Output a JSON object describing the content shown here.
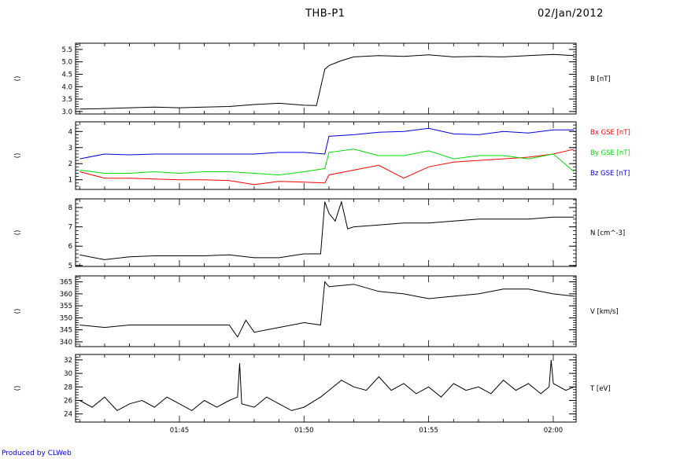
{
  "header": {
    "title": "THB-P1",
    "date": "02/Jan/2012"
  },
  "footer": {
    "credit": "Produced by CLWeb"
  },
  "chart_data": [
    {
      "type": "line",
      "panel_label": "()",
      "ylim": [
        2.9,
        5.75
      ],
      "yticks": [
        3.0,
        3.5,
        4.0,
        4.5,
        5.0,
        5.5
      ],
      "ytick_labels": [
        "3.0",
        "3.5",
        "4.0",
        "4.5",
        "5.0",
        "5.5"
      ],
      "series": [
        {
          "name": "B [nT]",
          "color": "#000000",
          "x": [
            "01:41:00",
            "01:42:00",
            "01:43:00",
            "01:44:00",
            "01:45:00",
            "01:46:00",
            "01:47:00",
            "01:48:00",
            "01:49:00",
            "01:50:00",
            "01:50:30",
            "01:50:50",
            "01:51:00",
            "01:51:30",
            "01:52:00",
            "01:53:00",
            "01:54:00",
            "01:55:00",
            "01:56:00",
            "01:57:00",
            "01:58:00",
            "01:59:00",
            "02:00:00",
            "02:00:50"
          ],
          "y": [
            3.1,
            3.12,
            3.15,
            3.18,
            3.15,
            3.18,
            3.2,
            3.28,
            3.33,
            3.25,
            3.24,
            4.7,
            4.85,
            5.05,
            5.2,
            5.25,
            5.22,
            5.28,
            5.2,
            5.22,
            5.2,
            5.25,
            5.3,
            5.25
          ]
        }
      ]
    },
    {
      "type": "line",
      "panel_label": "()",
      "ylim": [
        0.4,
        4.6
      ],
      "yticks": [
        1,
        2,
        3,
        4
      ],
      "ytick_labels": [
        "1",
        "2",
        "3",
        "4"
      ],
      "series": [
        {
          "name": "Bx GSE [nT]",
          "color": "#ff0000",
          "x": [
            "01:41:00",
            "01:42:00",
            "01:43:00",
            "01:44:00",
            "01:45:00",
            "01:46:00",
            "01:47:00",
            "01:48:00",
            "01:49:00",
            "01:50:00",
            "01:50:50",
            "01:51:00",
            "01:52:00",
            "01:53:00",
            "01:54:00",
            "01:55:00",
            "01:56:00",
            "01:57:00",
            "01:58:00",
            "01:59:00",
            "02:00:00",
            "02:00:50"
          ],
          "y": [
            1.5,
            1.1,
            1.1,
            1.05,
            1.0,
            1.0,
            0.95,
            0.7,
            0.9,
            0.85,
            0.8,
            1.3,
            1.6,
            1.9,
            1.1,
            1.8,
            2.1,
            2.2,
            2.3,
            2.4,
            2.6,
            2.9
          ]
        },
        {
          "name": "By GSE [nT]",
          "color": "#00dd00",
          "x": [
            "01:41:00",
            "01:42:00",
            "01:43:00",
            "01:44:00",
            "01:45:00",
            "01:46:00",
            "01:47:00",
            "01:48:00",
            "01:49:00",
            "01:50:00",
            "01:50:50",
            "01:51:00",
            "01:52:00",
            "01:53:00",
            "01:54:00",
            "01:55:00",
            "01:56:00",
            "01:57:00",
            "01:58:00",
            "01:59:00",
            "02:00:00",
            "02:00:50"
          ],
          "y": [
            1.6,
            1.4,
            1.4,
            1.5,
            1.4,
            1.5,
            1.5,
            1.4,
            1.3,
            1.5,
            1.7,
            2.7,
            2.9,
            2.5,
            2.5,
            2.8,
            2.3,
            2.5,
            2.5,
            2.3,
            2.6,
            1.5
          ]
        },
        {
          "name": "Bz GSE [nT]",
          "color": "#0000dd",
          "x": [
            "01:41:00",
            "01:42:00",
            "01:43:00",
            "01:44:00",
            "01:45:00",
            "01:46:00",
            "01:47:00",
            "01:48:00",
            "01:49:00",
            "01:50:00",
            "01:50:50",
            "01:51:00",
            "01:52:00",
            "01:53:00",
            "01:54:00",
            "01:55:00",
            "01:56:00",
            "01:57:00",
            "01:58:00",
            "01:59:00",
            "02:00:00",
            "02:00:50"
          ],
          "y": [
            2.3,
            2.6,
            2.55,
            2.6,
            2.6,
            2.6,
            2.6,
            2.6,
            2.7,
            2.7,
            2.6,
            3.7,
            3.8,
            3.95,
            4.0,
            4.2,
            3.85,
            3.8,
            4.0,
            3.9,
            4.1,
            4.1
          ]
        }
      ]
    },
    {
      "type": "line",
      "panel_label": "()",
      "ylim": [
        4.95,
        8.45
      ],
      "yticks": [
        5,
        6,
        7,
        8
      ],
      "ytick_labels": [
        "5",
        "6",
        "7",
        "8"
      ],
      "series": [
        {
          "name": "N [cm^-3]",
          "color": "#000000",
          "x": [
            "01:41:00",
            "01:42:00",
            "01:43:00",
            "01:44:00",
            "01:45:00",
            "01:46:00",
            "01:47:00",
            "01:48:00",
            "01:49:00",
            "01:50:00",
            "01:50:40",
            "01:50:50",
            "01:51:00",
            "01:51:15",
            "01:51:30",
            "01:51:45",
            "01:52:00",
            "01:53:00",
            "01:54:00",
            "01:55:00",
            "01:56:00",
            "01:57:00",
            "01:58:00",
            "01:59:00",
            "02:00:00",
            "02:00:50"
          ],
          "y": [
            5.55,
            5.3,
            5.45,
            5.5,
            5.5,
            5.5,
            5.55,
            5.4,
            5.4,
            5.6,
            5.6,
            8.3,
            7.7,
            7.3,
            8.3,
            6.9,
            7.0,
            7.1,
            7.2,
            7.2,
            7.3,
            7.4,
            7.4,
            7.4,
            7.5,
            7.5
          ]
        }
      ]
    },
    {
      "type": "line",
      "panel_label": "()",
      "ylim": [
        338,
        367.5
      ],
      "yticks": [
        340,
        345,
        350,
        355,
        360,
        365
      ],
      "ytick_labels": [
        "340",
        "345",
        "350",
        "355",
        "360",
        "365"
      ],
      "series": [
        {
          "name": "V [km/s]",
          "color": "#000000",
          "x": [
            "01:41:00",
            "01:42:00",
            "01:43:00",
            "01:44:00",
            "01:45:00",
            "01:46:00",
            "01:47:00",
            "01:47:20",
            "01:47:40",
            "01:48:00",
            "01:49:00",
            "01:50:00",
            "01:50:40",
            "01:50:50",
            "01:51:00",
            "01:52:00",
            "01:53:00",
            "01:54:00",
            "01:55:00",
            "01:56:00",
            "01:57:00",
            "01:58:00",
            "01:59:00",
            "02:00:00",
            "02:00:50"
          ],
          "y": [
            347,
            346,
            347,
            347,
            347,
            347,
            347,
            342,
            349,
            344,
            346,
            348,
            347,
            365,
            363,
            364,
            361,
            360,
            358,
            359,
            360,
            362,
            362,
            360,
            359
          ]
        }
      ]
    },
    {
      "type": "line",
      "panel_label": "()",
      "ylim": [
        22.8,
        32.8
      ],
      "yticks": [
        24,
        26,
        28,
        30,
        32
      ],
      "ytick_labels": [
        "24",
        "26",
        "28",
        "30",
        "32"
      ],
      "series": [
        {
          "name": "T [eV]",
          "color": "#000000",
          "x": [
            "01:41:00",
            "01:41:30",
            "01:42:00",
            "01:42:30",
            "01:43:00",
            "01:43:30",
            "01:44:00",
            "01:44:30",
            "01:45:00",
            "01:45:30",
            "01:46:00",
            "01:46:30",
            "01:47:00",
            "01:47:20",
            "01:47:25",
            "01:47:30",
            "01:48:00",
            "01:48:30",
            "01:49:00",
            "01:49:30",
            "01:50:00",
            "01:50:40",
            "01:51:00",
            "01:51:30",
            "01:52:00",
            "01:52:30",
            "01:53:00",
            "01:53:30",
            "01:54:00",
            "01:54:30",
            "01:55:00",
            "01:55:30",
            "01:56:00",
            "01:56:30",
            "01:57:00",
            "01:57:30",
            "01:58:00",
            "01:58:30",
            "01:59:00",
            "01:59:30",
            "01:59:50",
            "01:59:55",
            "02:00:00",
            "02:00:30",
            "02:00:50"
          ],
          "y": [
            26.0,
            25.0,
            26.5,
            24.5,
            25.5,
            26.0,
            25.0,
            26.5,
            25.5,
            24.5,
            26.0,
            25.0,
            26.0,
            26.5,
            31.5,
            25.5,
            25.0,
            26.5,
            25.5,
            24.5,
            25.0,
            26.5,
            27.5,
            29.0,
            28.0,
            27.5,
            29.5,
            27.5,
            28.5,
            27.0,
            28.0,
            26.5,
            28.5,
            27.5,
            28.0,
            27.0,
            29.0,
            27.5,
            28.5,
            27.0,
            28.0,
            32.0,
            28.5,
            27.5,
            28.0
          ]
        }
      ]
    }
  ],
  "x_axis": {
    "tick_labels": [
      "01:45",
      "01:50",
      "01:55",
      "02:00"
    ],
    "ticks": [
      "01:45:00",
      "01:50:00",
      "01:55:00",
      "02:00:00"
    ],
    "xlim": [
      "01:40:50",
      "02:00:55"
    ]
  }
}
